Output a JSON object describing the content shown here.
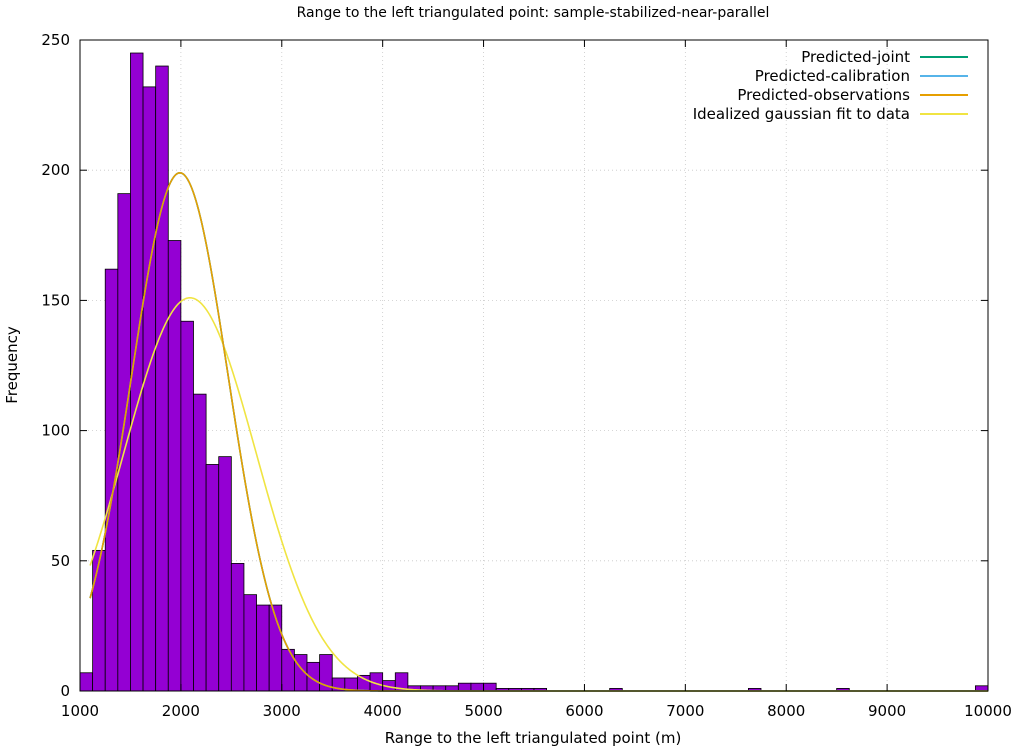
{
  "chart_data": {
    "type": "bar",
    "title": "Range to the left triangulated point: sample-stabilized-near-parallel",
    "xlabel": "Range to the left triangulated point (m)",
    "ylabel": "Frequency",
    "xlim": [
      1000,
      10000
    ],
    "ylim": [
      0,
      250
    ],
    "xticks": [
      1000,
      2000,
      3000,
      4000,
      5000,
      6000,
      7000,
      8000,
      9000,
      10000
    ],
    "yticks": [
      0,
      50,
      100,
      150,
      200,
      250
    ],
    "grid": true,
    "legend_position": "top-right",
    "bin_width": 125,
    "bar_color": "#9400d3",
    "bins_start": [
      1000,
      1125,
      1250,
      1375,
      1500,
      1625,
      1750,
      1875,
      2000,
      2125,
      2250,
      2375,
      2500,
      2625,
      2750,
      2875,
      3000,
      3125,
      3250,
      3375,
      3500,
      3625,
      3750,
      3875,
      4000,
      4125,
      4250,
      4375,
      4500,
      4625,
      4750,
      4875,
      5000,
      5125,
      5250,
      5375,
      5500,
      6250,
      7625,
      8500,
      9875
    ],
    "counts": [
      7,
      54,
      162,
      191,
      245,
      232,
      240,
      173,
      142,
      114,
      87,
      90,
      49,
      37,
      33,
      33,
      16,
      14,
      11,
      14,
      5,
      5,
      6,
      7,
      4,
      7,
      2,
      2,
      2,
      2,
      3,
      3,
      3,
      1,
      1,
      1,
      1,
      1,
      1,
      1,
      2
    ],
    "series": [
      {
        "name": "Predicted-joint",
        "color": "#009e73",
        "mu": 1990,
        "sigma": 480,
        "peak": 199
      },
      {
        "name": "Predicted-calibration",
        "color": "#56b4e9",
        "mu": 1990,
        "sigma": 480,
        "peak": 199
      },
      {
        "name": "Predicted-observations",
        "color": "#e69f00",
        "mu": 1990,
        "sigma": 480,
        "peak": 199
      },
      {
        "name": "Idealized gaussian fit to data",
        "color": "#f0e442",
        "mu": 2090,
        "sigma": 655,
        "peak": 151
      }
    ],
    "curve_x_range": [
      1100,
      10000
    ]
  }
}
